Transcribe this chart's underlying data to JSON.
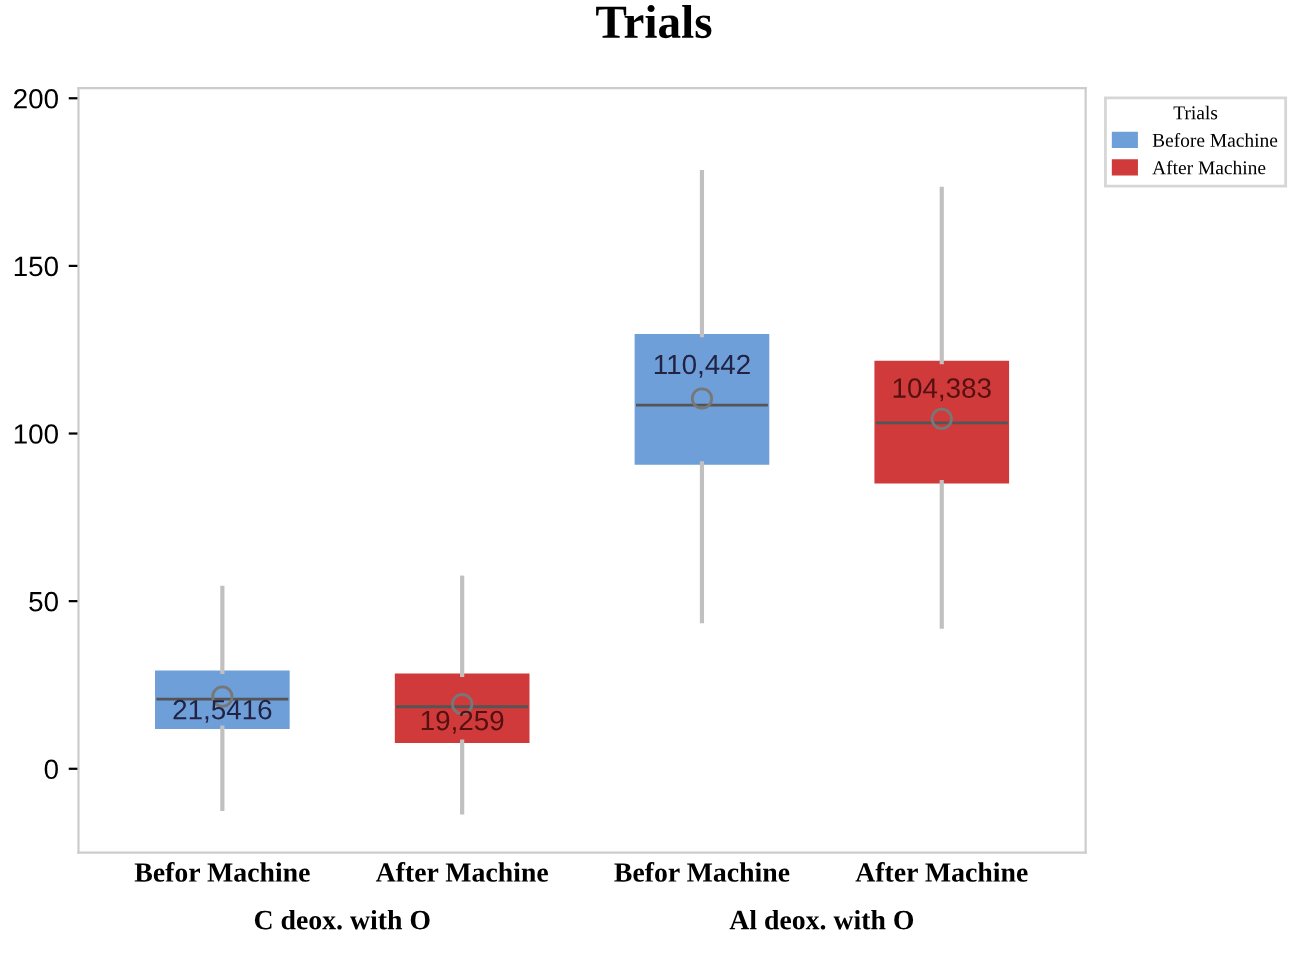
{
  "chart_data": {
    "type": "box",
    "title": "Trials",
    "legend_title": "Trials",
    "legend": "top right",
    "grid": false,
    "categories": [
      "Befor Machine",
      "After Machine",
      "Befor Machine",
      "After Machine"
    ],
    "annotations": [
      "C deox. with O",
      "Al deox. with O"
    ],
    "ylim": [
      -25,
      203
    ],
    "yticks": [
      0,
      50,
      100,
      150,
      200
    ],
    "series": [
      {
        "name": "Before Machine",
        "color": "#6f9fd8",
        "boxes": [
          {
            "low": -12,
            "q1": 12.3,
            "median": 20.8,
            "q3": 28.9,
            "high": 54,
            "mean": 21.5416
          },
          null,
          {
            "low": 44,
            "q1": 91.1,
            "median": 108.5,
            "q3": 129.3,
            "high": 178,
            "mean": 110.442
          },
          null
        ],
        "value_labels": [
          "21,5416",
          null,
          "110,442",
          null
        ]
      },
      {
        "name": "After Machine",
        "color": "#d03a3a",
        "boxes": [
          null,
          {
            "low": -13,
            "q1": 8.1,
            "median": 18.5,
            "q3": 28,
            "high": 57,
            "mean": 19.259
          },
          null,
          {
            "low": 42.4,
            "q1": 85.5,
            "median": 103.2,
            "q3": 121.3,
            "high": 173,
            "mean": 104.383
          }
        ],
        "value_labels": [
          null,
          "19,259",
          null,
          "104,383"
        ]
      }
    ]
  }
}
